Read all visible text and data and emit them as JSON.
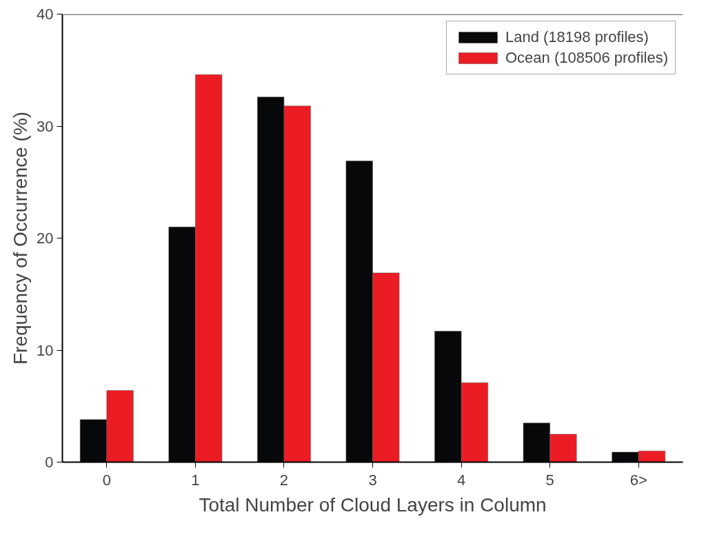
{
  "chart_data": {
    "type": "bar",
    "xlabel": "Total Number of Cloud Layers in Column",
    "ylabel": "Frequency of Occurrence (%)",
    "categories": [
      "0",
      "1",
      "2",
      "3",
      "4",
      "5",
      "6>"
    ],
    "series": [
      {
        "name": "Land (18198 profiles)",
        "color": "#060809",
        "values": [
          3.8,
          21.0,
          32.6,
          26.9,
          11.7,
          3.5,
          0.9
        ]
      },
      {
        "name": "Ocean (108506 profiles)",
        "color": "#ec1c24",
        "values": [
          6.4,
          34.6,
          31.8,
          16.9,
          7.1,
          2.5,
          1.0
        ]
      }
    ],
    "ylim": [
      0,
      40
    ],
    "yticks": [
      0,
      10,
      20,
      30,
      40
    ],
    "grid": false,
    "legend": "top right"
  }
}
